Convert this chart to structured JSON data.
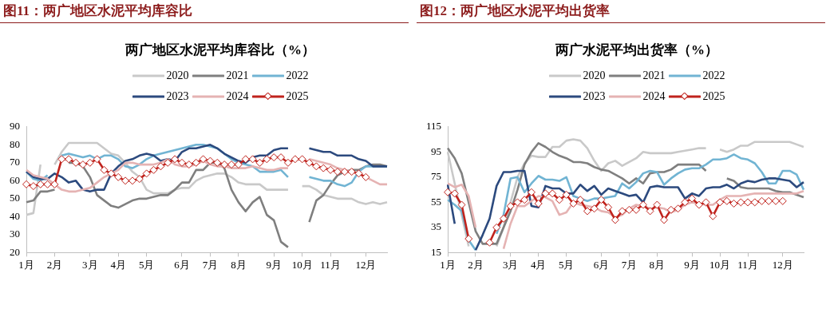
{
  "chart_data": [
    {
      "type": "line",
      "title": "图11：两广地区水泥平均库容比",
      "subtitle": "两广地区水泥平均库容比（%）",
      "categories": [
        "1月",
        null,
        null,
        null,
        "2月",
        null,
        null,
        null,
        null,
        "3月",
        null,
        null,
        null,
        "4月",
        null,
        null,
        null,
        "5月",
        null,
        null,
        null,
        null,
        "6月",
        null,
        null,
        null,
        "7月",
        null,
        null,
        null,
        "8月",
        null,
        null,
        null,
        null,
        "9月",
        null,
        null,
        null,
        "10月",
        null,
        null,
        null,
        "11月",
        null,
        null,
        null,
        null,
        "12月",
        null,
        null,
        null
      ],
      "series": [
        {
          "name": "2020",
          "color": "#c9c9c9",
          "marker": "none",
          "values": [
            41,
            42,
            69,
            null,
            69,
            76,
            81,
            81,
            81,
            81,
            81,
            78,
            75,
            74,
            70,
            65,
            62,
            55,
            53,
            53,
            53,
            55,
            56,
            56,
            60,
            62,
            63,
            64,
            64,
            62,
            59,
            58,
            58,
            58,
            55,
            55,
            55,
            55,
            null,
            57,
            57,
            55,
            52,
            51,
            50,
            50,
            50,
            48,
            47,
            48,
            47,
            48
          ]
        },
        {
          "name": "2021",
          "color": "#7f7f7f",
          "marker": "none",
          "values": [
            48,
            49,
            54,
            54,
            55,
            null,
            70,
            70,
            68,
            62,
            52,
            49,
            46,
            45,
            47,
            49,
            50,
            50,
            51,
            52,
            52,
            55,
            59,
            59,
            66,
            66,
            70,
            70,
            67,
            55,
            48,
            43,
            48,
            51,
            41,
            38,
            26,
            23,
            null,
            null,
            37,
            49,
            52,
            58,
            63,
            65,
            66,
            66,
            68,
            69,
            69,
            68
          ]
        },
        {
          "name": "2022",
          "color": "#71b4d3",
          "marker": "none",
          "values": [
            65,
            61,
            60,
            63,
            null,
            74,
            75,
            74,
            73,
            74,
            72,
            74,
            74,
            72,
            68,
            67,
            69,
            72,
            74,
            75,
            76,
            77,
            78,
            79,
            80,
            80,
            79,
            78,
            75,
            72,
            70,
            69,
            68,
            65,
            65,
            65,
            66,
            62,
            null,
            null,
            62,
            61,
            60,
            60,
            58,
            57,
            59,
            65,
            68,
            68,
            68,
            68
          ]
        },
        {
          "name": "2023",
          "color": "#2c4a7e",
          "marker": "none",
          "values": [
            65,
            62,
            61,
            61,
            64,
            62,
            59,
            60,
            55,
            54,
            55,
            55,
            64,
            68,
            71,
            72,
            74,
            75,
            74,
            71,
            72,
            71,
            76,
            78,
            78,
            79,
            80,
            78,
            75,
            73,
            71,
            70,
            73,
            74,
            74,
            77,
            78,
            78,
            null,
            null,
            78,
            77,
            76,
            76,
            74,
            74,
            74,
            72,
            71,
            68,
            68,
            68
          ]
        },
        {
          "name": "2024",
          "color": "#e5b3b3",
          "marker": "none",
          "values": [
            66,
            63,
            62,
            61,
            58,
            55,
            54,
            54,
            55,
            56,
            59,
            62,
            64,
            66,
            70,
            70,
            69,
            69,
            69,
            70,
            72,
            69,
            68,
            68,
            69,
            71,
            69,
            68,
            68,
            67,
            67,
            67,
            68,
            67,
            66,
            66,
            67,
            67,
            null,
            null,
            72,
            71,
            70,
            69,
            67,
            66,
            65,
            64,
            62,
            60,
            58,
            58
          ]
        },
        {
          "name": "2025",
          "color": "#c0231d",
          "marker": "diamond",
          "values": [
            58,
            57,
            58,
            58,
            58,
            72,
            72,
            70,
            69,
            70,
            72,
            66,
            64,
            62,
            60,
            60,
            61,
            64,
            66,
            68,
            70,
            72,
            70,
            69,
            70,
            72,
            71,
            70,
            69,
            69,
            69,
            72,
            72,
            70,
            72,
            73,
            73,
            70,
            72,
            72,
            70,
            68,
            67,
            66,
            65,
            65,
            65,
            64,
            62,
            null,
            null,
            null
          ]
        }
      ],
      "ylim": [
        20,
        90
      ],
      "yticks": [
        20,
        30,
        40,
        50,
        60,
        70,
        80,
        90
      ],
      "legend": "top",
      "grid": false
    },
    {
      "type": "line",
      "title": "图12：两广地区水泥平均出货率",
      "subtitle": "两广水泥平均出货率（%）",
      "categories": [
        "1月",
        null,
        null,
        null,
        "2月",
        null,
        null,
        null,
        null,
        "3月",
        null,
        null,
        null,
        "4月",
        null,
        null,
        null,
        "5月",
        null,
        null,
        null,
        null,
        "6月",
        null,
        null,
        null,
        "7月",
        null,
        null,
        null,
        "8月",
        null,
        null,
        null,
        null,
        "9月",
        null,
        null,
        null,
        "10月",
        null,
        null,
        null,
        "11月",
        null,
        null,
        null,
        null,
        "12月",
        null,
        null,
        null
      ],
      "series": [
        {
          "name": "2020",
          "color": "#c9c9c9",
          "marker": "none",
          "values": [
            95,
            70,
            45,
            20,
            null,
            null,
            null,
            20,
            35,
            55,
            75,
            86,
            92,
            91,
            91,
            99,
            99,
            104,
            105,
            104,
            98,
            88,
            80,
            86,
            88,
            84,
            87,
            90,
            95,
            94,
            94,
            94,
            94,
            95,
            96,
            97,
            98,
            98,
            null,
            97,
            95,
            97,
            100,
            100,
            103,
            103,
            103,
            103,
            103,
            103,
            101,
            99
          ]
        },
        {
          "name": "2021",
          "color": "#7f7f7f",
          "marker": "none",
          "values": [
            98,
            90,
            78,
            55,
            32,
            22,
            22,
            22,
            35,
            48,
            65,
            85,
            95,
            102,
            99,
            95,
            92,
            90,
            87,
            87,
            86,
            83,
            81,
            80,
            77,
            74,
            70,
            74,
            70,
            78,
            79,
            79,
            81,
            85,
            85,
            85,
            85,
            80,
            null,
            null,
            74,
            72,
            67,
            66,
            66,
            66,
            66,
            64,
            63,
            63,
            61,
            59
          ]
        },
        {
          "name": "2022",
          "color": "#71b4d3",
          "marker": "none",
          "values": [
            57,
            53,
            48,
            25,
            17,
            null,
            null,
            30,
            45,
            74,
            75,
            63,
            70,
            76,
            73,
            73,
            72,
            75,
            60,
            58,
            56,
            58,
            58,
            59,
            60,
            70,
            66,
            71,
            78,
            80,
            79,
            69,
            74,
            78,
            81,
            82,
            82,
            85,
            89,
            89,
            90,
            93,
            90,
            89,
            86,
            79,
            70,
            70,
            80,
            80,
            77,
            65
          ]
        },
        {
          "name": "2023",
          "color": "#2c4a7e",
          "marker": "none",
          "values": [
            69,
            38,
            null,
            null,
            17,
            29,
            42,
            68,
            79,
            79,
            80,
            80,
            52,
            51,
            68,
            66,
            66,
            62,
            62,
            69,
            64,
            68,
            61,
            66,
            64,
            62,
            60,
            61,
            55,
            67,
            68,
            67,
            67,
            67,
            58,
            62,
            60,
            66,
            67,
            67,
            69,
            66,
            70,
            72,
            71,
            73,
            74,
            74,
            73,
            72,
            67,
            71
          ]
        },
        {
          "name": "2024",
          "color": "#e5b3b3",
          "marker": "none",
          "values": [
            70,
            67,
            69,
            60,
            35,
            null,
            null,
            null,
            18,
            38,
            52,
            52,
            56,
            60,
            59,
            56,
            45,
            47,
            55,
            53,
            52,
            51,
            48,
            47,
            43,
            45,
            50,
            53,
            52,
            50,
            51,
            50,
            47,
            49,
            53,
            55,
            54,
            53,
            53,
            57,
            60,
            60,
            60,
            61,
            62,
            62,
            62,
            62,
            62,
            62,
            62,
            64
          ]
        },
        {
          "name": "2025",
          "color": "#c0231d",
          "marker": "diamond",
          "values": [
            63,
            62,
            53,
            26,
            null,
            null,
            23,
            35,
            42,
            52,
            55,
            57,
            63,
            54,
            62,
            62,
            57,
            61,
            54,
            57,
            48,
            50,
            57,
            51,
            41,
            48,
            49,
            49,
            53,
            48,
            53,
            41,
            49,
            50,
            55,
            58,
            53,
            55,
            44,
            55,
            56,
            54,
            55,
            55,
            55,
            56,
            56,
            56,
            56,
            null,
            null,
            null
          ]
        }
      ],
      "ylim": [
        15,
        115
      ],
      "yticks": [
        15,
        35,
        55,
        75,
        95,
        115
      ],
      "legend": "top",
      "grid": false
    }
  ]
}
